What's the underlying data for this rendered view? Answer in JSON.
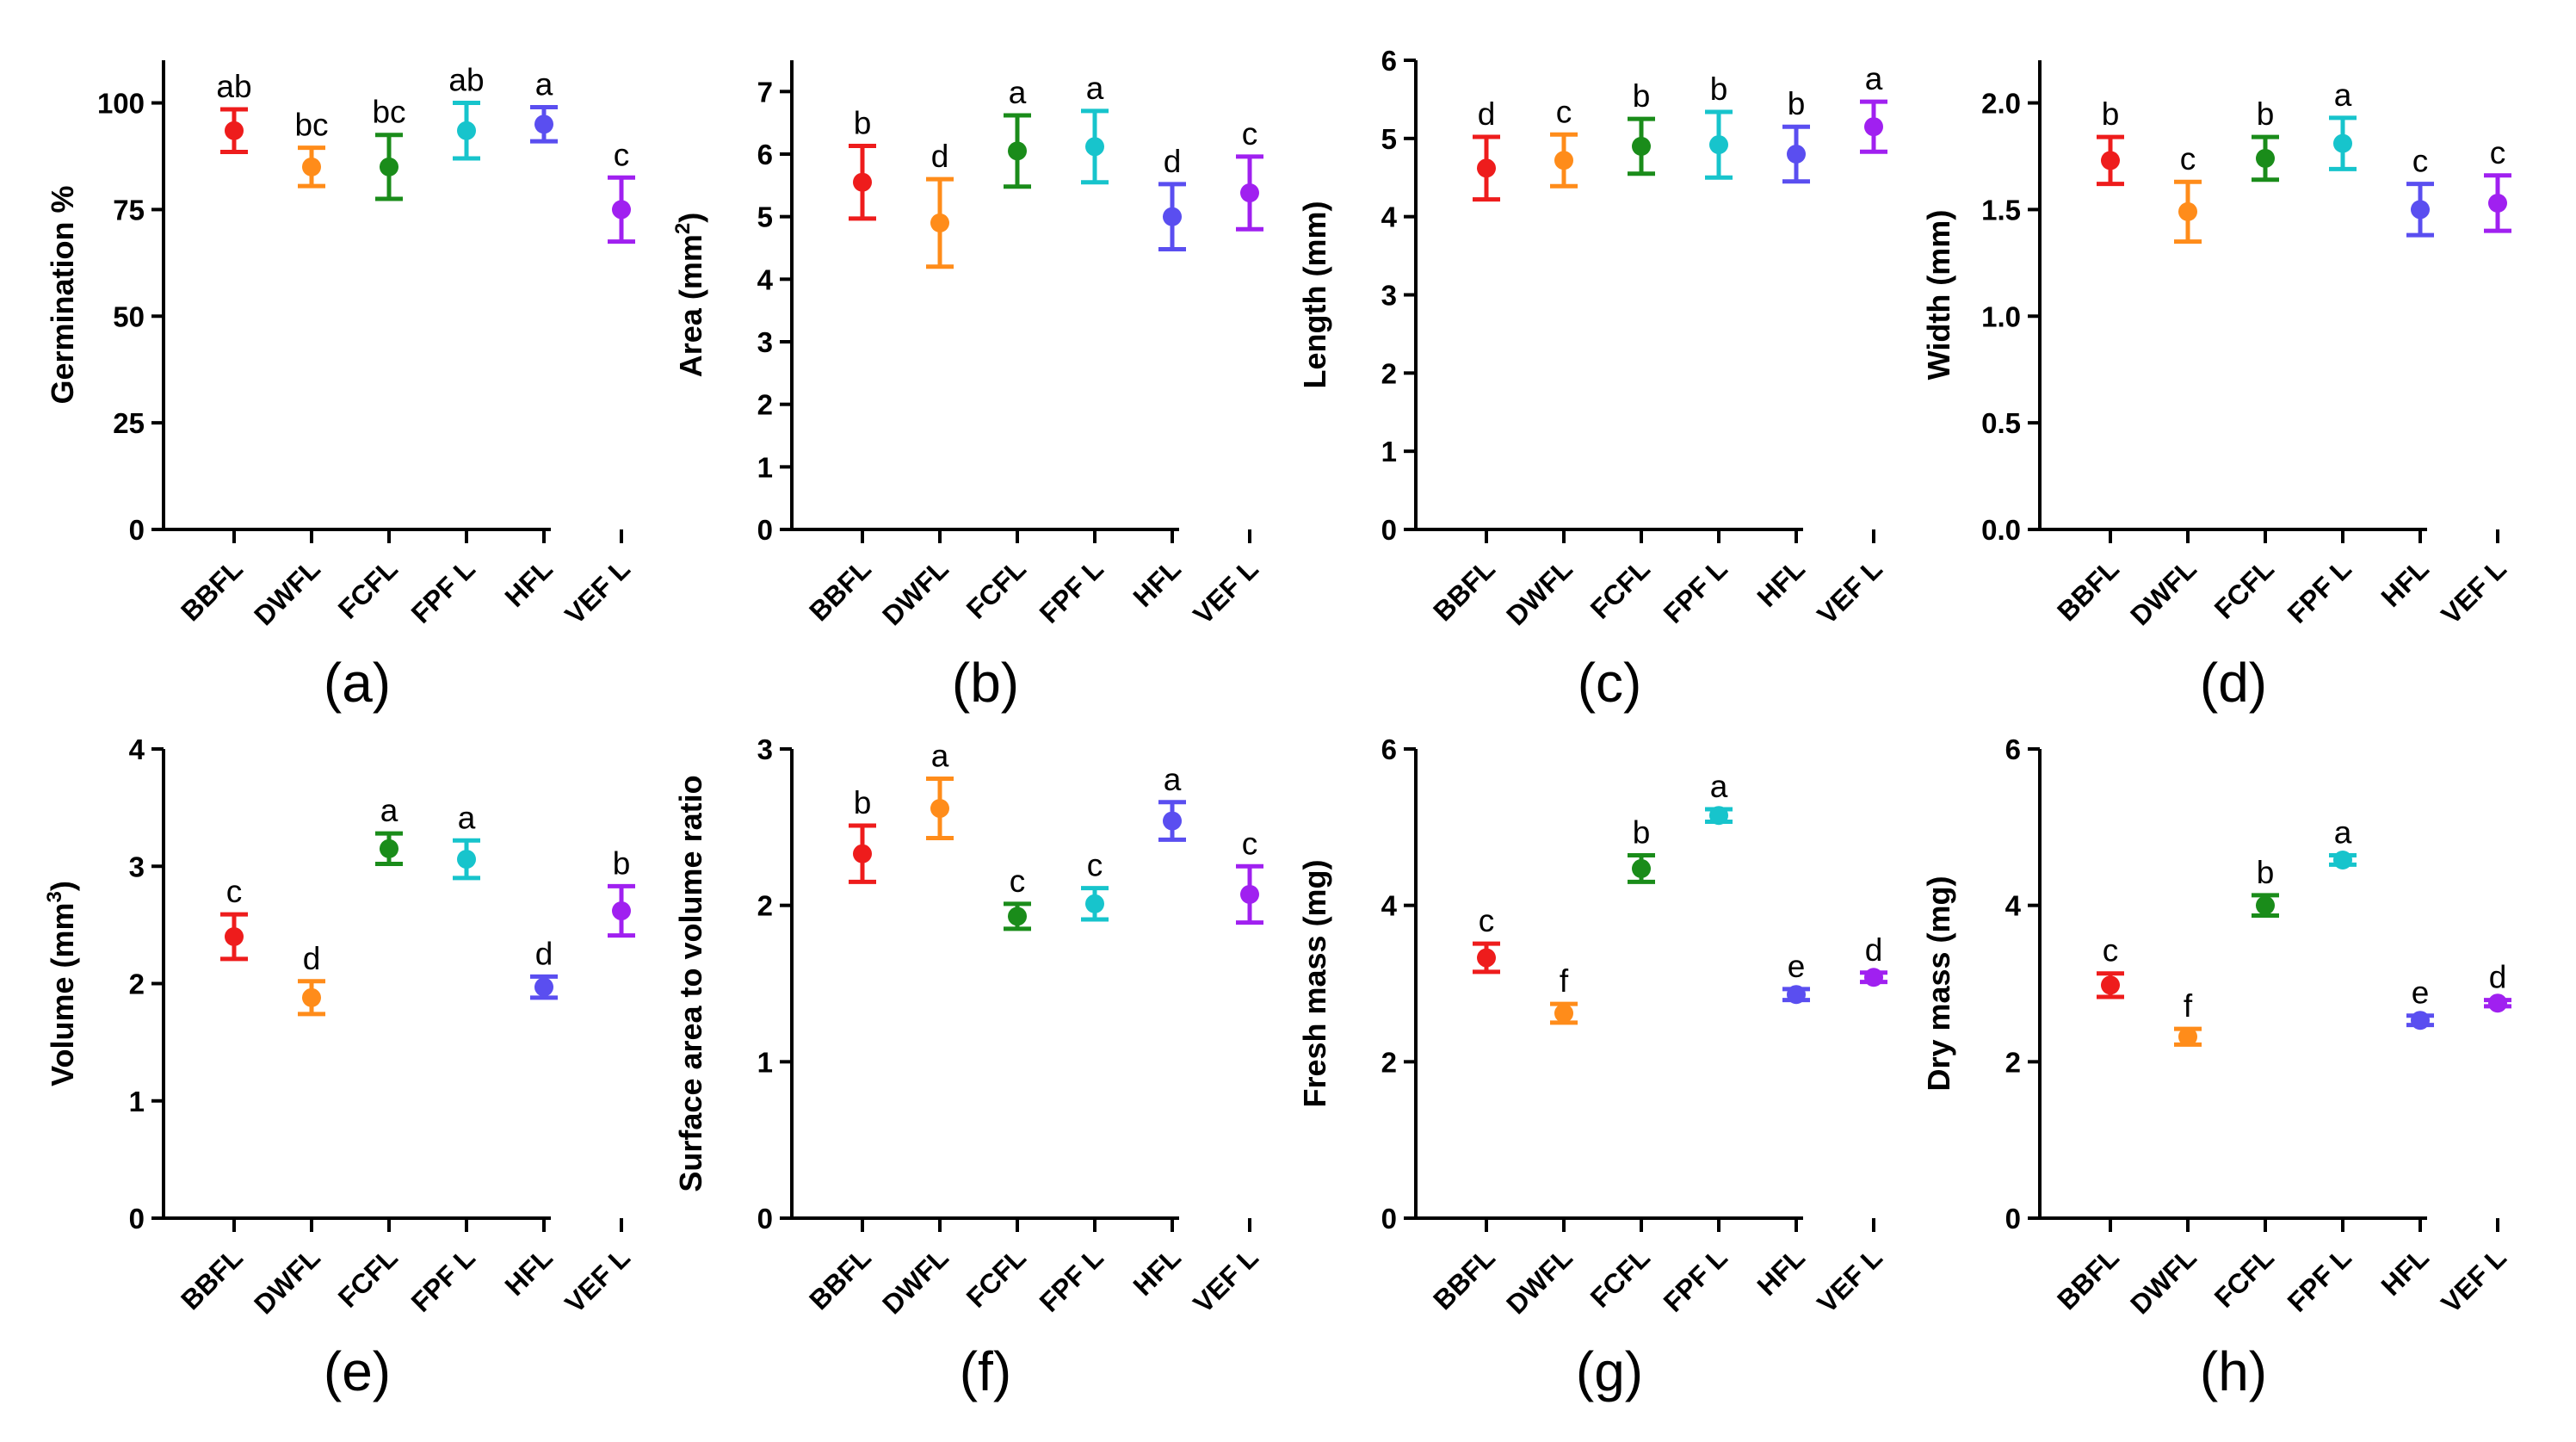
{
  "figure": {
    "categories": [
      "BBFL",
      "DWFL",
      "FCFL",
      "FPF L",
      "HFL",
      "VEF L"
    ],
    "category_colors": [
      "#ee1c1c",
      "#ff8c1a",
      "#1a8c1a",
      "#17c4cc",
      "#5a4ef0",
      "#a020f0"
    ]
  },
  "chart_data": [
    {
      "type": "scatter",
      "panel_label": "(a)",
      "ylabel": "Germination %",
      "ylim": [
        0,
        110
      ],
      "yticks": [
        0,
        25,
        50,
        75,
        100
      ],
      "ytick_labels": [
        "0",
        "25",
        "50",
        "75",
        "100"
      ],
      "categories": [
        "BBFL",
        "DWFL",
        "FCFL",
        "FPF L",
        "HFL",
        "VEF L"
      ],
      "values": [
        93.5,
        85,
        85,
        93.5,
        95,
        75
      ],
      "errors": [
        5,
        4.5,
        7.5,
        6.5,
        4,
        7.5
      ],
      "letters": [
        "ab",
        "bc",
        "bc",
        "ab",
        "a",
        "c"
      ]
    },
    {
      "type": "scatter",
      "panel_label": "(b)",
      "ylabel": "Area (mm²)",
      "ylabel_base": "Area (mm",
      "ylabel_sup": "2",
      "ylabel_end": ")",
      "ylim": [
        0,
        7.5
      ],
      "yticks": [
        0,
        1,
        2,
        3,
        4,
        5,
        6,
        7
      ],
      "ytick_labels": [
        "0",
        "1",
        "2",
        "3",
        "4",
        "5",
        "6",
        "7"
      ],
      "categories": [
        "BBFL",
        "DWFL",
        "FCFL",
        "FPF L",
        "HFL",
        "VEF L"
      ],
      "values": [
        5.55,
        4.9,
        6.05,
        6.12,
        5.0,
        5.38
      ],
      "errors": [
        0.58,
        0.7,
        0.57,
        0.57,
        0.52,
        0.58
      ],
      "letters": [
        "b",
        "d",
        "a",
        "a",
        "d",
        "c"
      ]
    },
    {
      "type": "scatter",
      "panel_label": "(c)",
      "ylabel": "Length (mm)",
      "ylim": [
        0,
        6
      ],
      "yticks": [
        0,
        1,
        2,
        3,
        4,
        5,
        6
      ],
      "ytick_labels": [
        "0",
        "1",
        "2",
        "3",
        "4",
        "5",
        "6"
      ],
      "categories": [
        "BBFL",
        "DWFL",
        "FCFL",
        "FPF L",
        "HFL",
        "VEF L"
      ],
      "values": [
        4.62,
        4.72,
        4.9,
        4.92,
        4.8,
        5.15
      ],
      "errors": [
        0.4,
        0.33,
        0.35,
        0.42,
        0.35,
        0.32
      ],
      "letters": [
        "d",
        "c",
        "b",
        "b",
        "b",
        "a"
      ]
    },
    {
      "type": "scatter",
      "panel_label": "(d)",
      "ylabel": "Width (mm)",
      "ylim": [
        0,
        2.2
      ],
      "yticks": [
        0,
        0.5,
        1.0,
        1.5,
        2.0
      ],
      "ytick_labels": [
        "0.0",
        "0.5",
        "1.0",
        "1.5",
        "2.0"
      ],
      "categories": [
        "BBFL",
        "DWFL",
        "FCFL",
        "FPF L",
        "HFL",
        "VEF L"
      ],
      "values": [
        1.73,
        1.49,
        1.74,
        1.81,
        1.5,
        1.53
      ],
      "errors": [
        0.11,
        0.14,
        0.1,
        0.12,
        0.12,
        0.13
      ],
      "letters": [
        "b",
        "c",
        "b",
        "a",
        "c",
        "c"
      ]
    },
    {
      "type": "scatter",
      "panel_label": "(e)",
      "ylabel": "Volume (mm³)",
      "ylabel_base": "Volume (mm",
      "ylabel_sup": "3",
      "ylabel_end": ")",
      "ylim": [
        0,
        4
      ],
      "yticks": [
        0,
        1,
        2,
        3,
        4
      ],
      "ytick_labels": [
        "0",
        "1",
        "2",
        "3",
        "4"
      ],
      "categories": [
        "BBFL",
        "DWFL",
        "FCFL",
        "FPF L",
        "HFL",
        "VEF L"
      ],
      "values": [
        2.4,
        1.88,
        3.15,
        3.06,
        1.97,
        2.62
      ],
      "errors": [
        0.19,
        0.14,
        0.13,
        0.16,
        0.09,
        0.21
      ],
      "letters": [
        "c",
        "d",
        "a",
        "a",
        "d",
        "b"
      ]
    },
    {
      "type": "scatter",
      "panel_label": "(f)",
      "ylabel": "Surface area to volume ratio",
      "ylim": [
        0,
        3
      ],
      "yticks": [
        0,
        1,
        2,
        3
      ],
      "ytick_labels": [
        "0",
        "1",
        "2",
        "3"
      ],
      "categories": [
        "BBFL",
        "DWFL",
        "FCFL",
        "FPF L",
        "HFL",
        "VEF L"
      ],
      "values": [
        2.33,
        2.62,
        1.93,
        2.01,
        2.54,
        2.07
      ],
      "errors": [
        0.18,
        0.19,
        0.08,
        0.1,
        0.12,
        0.18
      ],
      "letters": [
        "b",
        "a",
        "c",
        "c",
        "a",
        "c"
      ]
    },
    {
      "type": "scatter",
      "panel_label": "(g)",
      "ylabel": "Fresh mass (mg)",
      "ylim": [
        0,
        6
      ],
      "yticks": [
        0,
        2,
        4,
        6
      ],
      "ytick_labels": [
        "0",
        "2",
        "4",
        "6"
      ],
      "categories": [
        "BBFL",
        "DWFL",
        "FCFL",
        "FPF L",
        "HFL",
        "VEF L"
      ],
      "values": [
        3.33,
        2.62,
        4.47,
        5.15,
        2.86,
        3.08
      ],
      "errors": [
        0.18,
        0.12,
        0.17,
        0.08,
        0.07,
        0.06
      ],
      "letters": [
        "c",
        "f",
        "b",
        "a",
        "e",
        "d"
      ]
    },
    {
      "type": "scatter",
      "panel_label": "(h)",
      "ylabel": "Dry mass (mg)",
      "ylim": [
        0,
        6
      ],
      "yticks": [
        0,
        2,
        4,
        6
      ],
      "ytick_labels": [
        "0",
        "2",
        "4",
        "6"
      ],
      "categories": [
        "BBFL",
        "DWFL",
        "FCFL",
        "FPF L",
        "HFL",
        "VEF L"
      ],
      "values": [
        2.98,
        2.32,
        4.0,
        4.58,
        2.53,
        2.75
      ],
      "errors": [
        0.15,
        0.1,
        0.13,
        0.06,
        0.06,
        0.04
      ],
      "letters": [
        "c",
        "f",
        "b",
        "a",
        "e",
        "d"
      ]
    }
  ]
}
